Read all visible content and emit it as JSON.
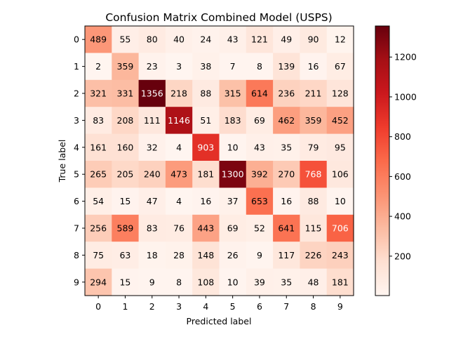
{
  "chart_data": {
    "type": "heatmap",
    "title": "Confusion Matrix Combined Model (USPS)",
    "xlabel": "Predicted label",
    "ylabel": "True label",
    "x_categories": [
      "0",
      "1",
      "2",
      "3",
      "4",
      "5",
      "6",
      "7",
      "8",
      "9"
    ],
    "y_categories": [
      "0",
      "1",
      "2",
      "3",
      "4",
      "5",
      "6",
      "7",
      "8",
      "9"
    ],
    "values": [
      [
        489,
        55,
        80,
        40,
        24,
        43,
        121,
        49,
        90,
        12
      ],
      [
        2,
        359,
        23,
        3,
        38,
        7,
        8,
        139,
        16,
        67
      ],
      [
        321,
        331,
        1356,
        218,
        88,
        315,
        614,
        236,
        211,
        128
      ],
      [
        83,
        208,
        111,
        1146,
        51,
        183,
        69,
        462,
        359,
        452
      ],
      [
        161,
        160,
        32,
        4,
        903,
        10,
        43,
        35,
        79,
        95
      ],
      [
        265,
        205,
        240,
        473,
        181,
        1300,
        392,
        270,
        768,
        106
      ],
      [
        54,
        15,
        47,
        4,
        16,
        37,
        653,
        16,
        88,
        10
      ],
      [
        256,
        589,
        83,
        76,
        443,
        69,
        52,
        641,
        115,
        706
      ],
      [
        75,
        63,
        18,
        28,
        148,
        26,
        9,
        117,
        226,
        243
      ],
      [
        294,
        15,
        9,
        8,
        108,
        10,
        39,
        35,
        48,
        181
      ]
    ],
    "colormap": "Reds",
    "vmin": 2,
    "vmax": 1356,
    "colorbar_ticks": [
      "200",
      "400",
      "600",
      "800",
      "1000",
      "1200"
    ],
    "grid": false
  }
}
